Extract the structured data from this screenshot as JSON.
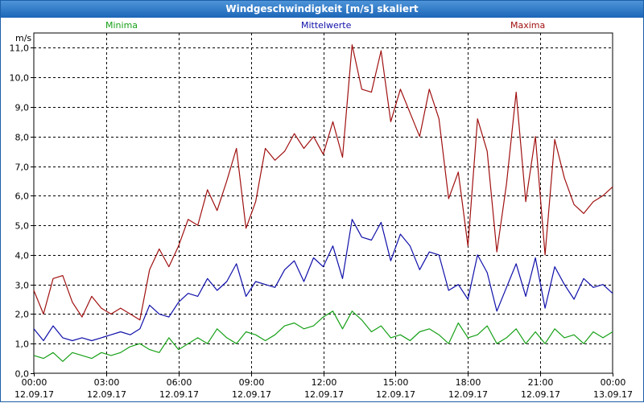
{
  "window": {
    "title": "Windgeschwindigkeit [m/s] skaliert"
  },
  "legend": [
    {
      "name": "Minima",
      "color": "#16a016"
    },
    {
      "name": "Mittelwerte",
      "color": "#0f0faa"
    },
    {
      "name": "Maxima",
      "color": "#a01010"
    }
  ],
  "chart_data": {
    "type": "line",
    "title": "Windgeschwindigkeit [m/s] skaliert",
    "ylabel": "m/s",
    "xlabel": "",
    "ylim": [
      0,
      11.5
    ],
    "grid": true,
    "y_ticks": [
      "0,0",
      "1,0",
      "2,0",
      "3,0",
      "4,0",
      "5,0",
      "6,0",
      "7,0",
      "8,0",
      "9,0",
      "10,0",
      "11,0"
    ],
    "y_tick_values": [
      0,
      1,
      2,
      3,
      4,
      5,
      6,
      7,
      8,
      9,
      10,
      11
    ],
    "x_ticks": [
      {
        "time": "00:00",
        "date": "12.09.17"
      },
      {
        "time": "03:00",
        "date": "12.09.17"
      },
      {
        "time": "06:00",
        "date": "12.09.17"
      },
      {
        "time": "09:00",
        "date": "12.09.17"
      },
      {
        "time": "12:00",
        "date": "12.09.17"
      },
      {
        "time": "15:00",
        "date": "12.09.17"
      },
      {
        "time": "18:00",
        "date": "12.09.17"
      },
      {
        "time": "21:00",
        "date": "12.09.17"
      },
      {
        "time": "00:00",
        "date": "13.09.17"
      }
    ],
    "x_range_hours": [
      0,
      24
    ],
    "series": [
      {
        "name": "Maxima",
        "color": "#a01010",
        "x": [
          0,
          0.4,
          0.8,
          1.2,
          1.6,
          2.0,
          2.4,
          2.8,
          3.2,
          3.6,
          4.0,
          4.4,
          4.8,
          5.2,
          5.6,
          6.0,
          6.4,
          6.8,
          7.2,
          7.6,
          8.0,
          8.4,
          8.8,
          9.2,
          9.6,
          10.0,
          10.4,
          10.8,
          11.2,
          11.6,
          12.0,
          12.4,
          12.8,
          13.2,
          13.6,
          14.0,
          14.4,
          14.8,
          15.2,
          15.6,
          16.0,
          16.4,
          16.8,
          17.2,
          17.6,
          18.0,
          18.4,
          18.8,
          19.2,
          19.6,
          20.0,
          20.4,
          20.8,
          21.2,
          21.6,
          22.0,
          22.4,
          22.8,
          23.2,
          23.6,
          24.0
        ],
        "values": [
          2.8,
          2.0,
          3.2,
          3.3,
          2.4,
          1.9,
          2.6,
          2.2,
          2.0,
          2.2,
          2.0,
          1.8,
          3.5,
          4.2,
          3.6,
          4.3,
          5.2,
          5.0,
          6.2,
          5.5,
          6.5,
          7.6,
          4.9,
          5.8,
          7.6,
          7.2,
          7.5,
          8.1,
          7.6,
          8.0,
          7.4,
          8.5,
          7.3,
          11.1,
          9.6,
          9.5,
          10.9,
          8.5,
          9.6,
          8.8,
          8.0,
          9.6,
          8.6,
          5.9,
          6.8,
          4.3,
          8.6,
          7.5,
          4.1,
          6.4,
          9.5,
          5.8,
          8.0,
          4.0,
          7.9,
          6.6,
          5.7,
          5.4,
          5.8,
          6.0,
          6.3
        ]
      },
      {
        "name": "Mittelwerte",
        "color": "#0f0faa",
        "x": [
          0,
          0.4,
          0.8,
          1.2,
          1.6,
          2.0,
          2.4,
          2.8,
          3.2,
          3.6,
          4.0,
          4.4,
          4.8,
          5.2,
          5.6,
          6.0,
          6.4,
          6.8,
          7.2,
          7.6,
          8.0,
          8.4,
          8.8,
          9.2,
          9.6,
          10.0,
          10.4,
          10.8,
          11.2,
          11.6,
          12.0,
          12.4,
          12.8,
          13.2,
          13.6,
          14.0,
          14.4,
          14.8,
          15.2,
          15.6,
          16.0,
          16.4,
          16.8,
          17.2,
          17.6,
          18.0,
          18.4,
          18.8,
          19.2,
          19.6,
          20.0,
          20.4,
          20.8,
          21.2,
          21.6,
          22.0,
          22.4,
          22.8,
          23.2,
          23.6,
          24.0
        ],
        "values": [
          1.5,
          1.1,
          1.6,
          1.2,
          1.1,
          1.2,
          1.1,
          1.2,
          1.3,
          1.4,
          1.3,
          1.5,
          2.3,
          2.0,
          1.9,
          2.4,
          2.7,
          2.6,
          3.2,
          2.8,
          3.1,
          3.7,
          2.6,
          3.1,
          3.0,
          2.9,
          3.5,
          3.8,
          3.1,
          3.9,
          3.6,
          4.3,
          3.2,
          5.2,
          4.6,
          4.5,
          5.1,
          3.8,
          4.7,
          4.3,
          3.5,
          4.1,
          4.0,
          2.8,
          3.0,
          2.5,
          4.0,
          3.4,
          2.1,
          2.9,
          3.7,
          2.6,
          3.9,
          2.2,
          3.6,
          3.0,
          2.5,
          3.2,
          2.9,
          3.0,
          2.7
        ]
      },
      {
        "name": "Minima",
        "color": "#16a016",
        "x": [
          0,
          0.4,
          0.8,
          1.2,
          1.6,
          2.0,
          2.4,
          2.8,
          3.2,
          3.6,
          4.0,
          4.4,
          4.8,
          5.2,
          5.6,
          6.0,
          6.4,
          6.8,
          7.2,
          7.6,
          8.0,
          8.4,
          8.8,
          9.2,
          9.6,
          10.0,
          10.4,
          10.8,
          11.2,
          11.6,
          12.0,
          12.4,
          12.8,
          13.2,
          13.6,
          14.0,
          14.4,
          14.8,
          15.2,
          15.6,
          16.0,
          16.4,
          16.8,
          17.2,
          17.6,
          18.0,
          18.4,
          18.8,
          19.2,
          19.6,
          20.0,
          20.4,
          20.8,
          21.2,
          21.6,
          22.0,
          22.4,
          22.8,
          23.2,
          23.6,
          24.0
        ],
        "values": [
          0.6,
          0.5,
          0.7,
          0.4,
          0.7,
          0.6,
          0.5,
          0.7,
          0.6,
          0.7,
          0.9,
          1.0,
          0.8,
          0.7,
          1.2,
          0.8,
          1.0,
          1.2,
          1.0,
          1.5,
          1.2,
          1.0,
          1.4,
          1.3,
          1.1,
          1.3,
          1.6,
          1.7,
          1.5,
          1.6,
          1.9,
          2.1,
          1.5,
          2.1,
          1.8,
          1.4,
          1.6,
          1.2,
          1.3,
          1.1,
          1.4,
          1.5,
          1.3,
          1.0,
          1.7,
          1.2,
          1.3,
          1.6,
          1.0,
          1.2,
          1.5,
          1.0,
          1.4,
          1.0,
          1.5,
          1.2,
          1.3,
          1.0,
          1.4,
          1.2,
          1.4
        ]
      }
    ]
  }
}
